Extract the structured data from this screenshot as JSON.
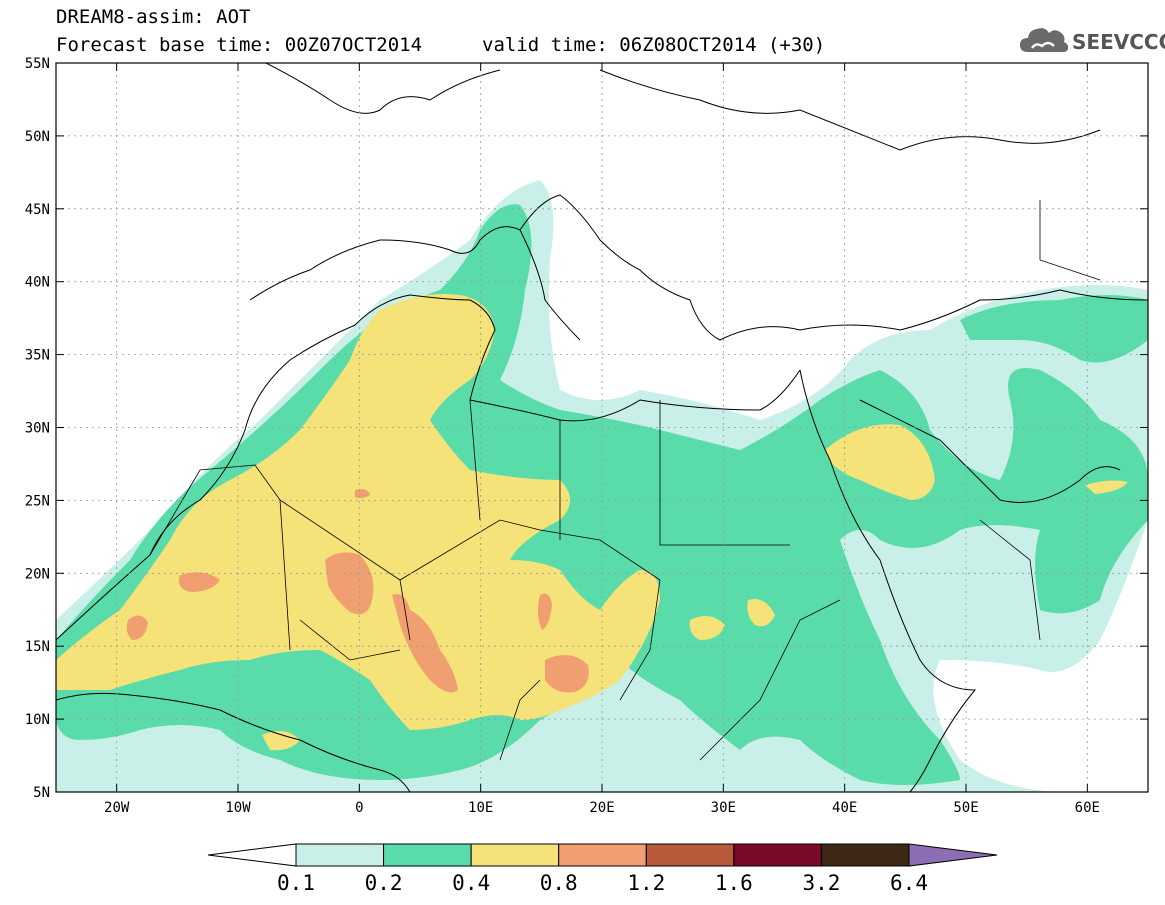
{
  "title": {
    "line1": "DREAM8-assim: AOT",
    "base_time": "Forecast base time: 00Z07OCT2014",
    "valid_time": "valid time: 06Z08OCT2014 (+30)"
  },
  "logo": {
    "text": "SEEVCCC",
    "icon": "cloud-icon"
  },
  "map": {
    "lon_range": [
      -25,
      65
    ],
    "lat_range": [
      5,
      55
    ],
    "lat_ticks": [
      {
        "value": 55,
        "label": "55N"
      },
      {
        "value": 50,
        "label": "50N"
      },
      {
        "value": 45,
        "label": "45N"
      },
      {
        "value": 40,
        "label": "40N"
      },
      {
        "value": 35,
        "label": "35N"
      },
      {
        "value": 30,
        "label": "30N"
      },
      {
        "value": 25,
        "label": "25N"
      },
      {
        "value": 20,
        "label": "20N"
      },
      {
        "value": 15,
        "label": "15N"
      },
      {
        "value": 10,
        "label": "10N"
      },
      {
        "value": 5,
        "label": "5N"
      }
    ],
    "lon_ticks": [
      {
        "value": -20,
        "label": "20W"
      },
      {
        "value": -10,
        "label": "10W"
      },
      {
        "value": 0,
        "label": "0"
      },
      {
        "value": 10,
        "label": "10E"
      },
      {
        "value": 20,
        "label": "20E"
      },
      {
        "value": 30,
        "label": "30E"
      },
      {
        "value": 40,
        "label": "40E"
      },
      {
        "value": 50,
        "label": "50E"
      },
      {
        "value": 60,
        "label": "60E"
      }
    ],
    "grid": true
  },
  "colorbar": {
    "bins": [
      {
        "color": "#ffffff"
      },
      {
        "color": "#c8f0e8"
      },
      {
        "color": "#5adcaa"
      },
      {
        "color": "#f5e278"
      },
      {
        "color": "#f0a070"
      },
      {
        "color": "#b85a3c"
      },
      {
        "color": "#7a0a28"
      },
      {
        "color": "#3c2814"
      },
      {
        "color": "#8c6eb4"
      }
    ],
    "labels": [
      "0.1",
      "0.2",
      "0.4",
      "0.8",
      "1.2",
      "1.6",
      "3.2",
      "6.4"
    ]
  }
}
